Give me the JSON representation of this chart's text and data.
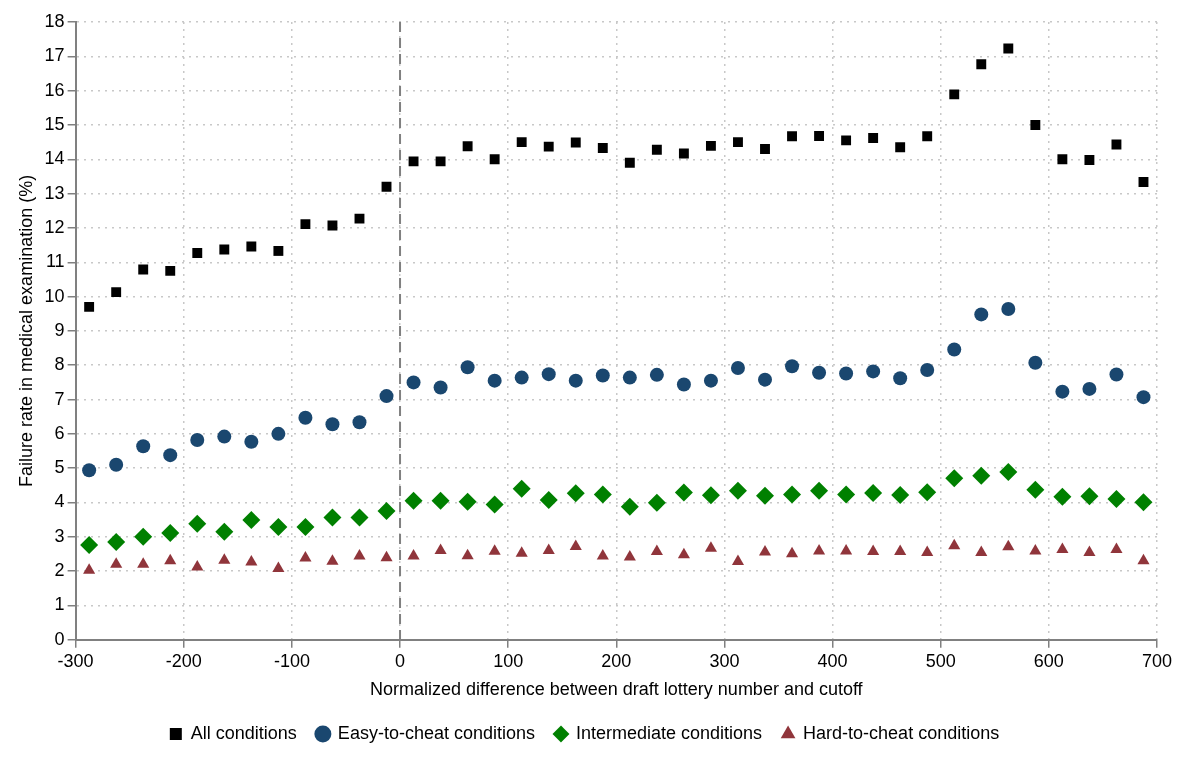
{
  "chart_data": {
    "type": "scatter",
    "xlabel": "Normalized difference between draft lottery number and cutoff",
    "ylabel": "Failure rate in medical examination (%)",
    "x": [
      -287.5,
      -262.5,
      -237.5,
      -212.5,
      -187.5,
      -162.5,
      -137.5,
      -112.5,
      -87.5,
      -62.5,
      -37.5,
      -12.5,
      12.5,
      37.5,
      62.5,
      87.5,
      112.5,
      137.5,
      162.5,
      187.5,
      212.5,
      237.5,
      262.5,
      287.5,
      312.5,
      337.5,
      362.5,
      387.5,
      412.5,
      437.5,
      462.5,
      487.5,
      512.5,
      537.5,
      562.5,
      587.5,
      612.5,
      637.5,
      662.5,
      687.5
    ],
    "series": [
      {
        "name": "All conditions",
        "color": "#000000",
        "marker": "square",
        "values": [
          9.7,
          10.13,
          10.79,
          10.75,
          11.27,
          11.37,
          11.46,
          11.33,
          12.11,
          12.07,
          12.27,
          13.2,
          13.94,
          13.94,
          14.38,
          14.0,
          14.5,
          14.37,
          14.49,
          14.33,
          13.9,
          14.28,
          14.17,
          14.39,
          14.5,
          14.3,
          14.67,
          14.68,
          14.55,
          14.62,
          14.35,
          14.67,
          15.89,
          16.77,
          17.23,
          15.0,
          14.0,
          13.98,
          14.43,
          13.34
        ]
      },
      {
        "name": "Easy-to-cheat conditions",
        "color": "#1a476f",
        "marker": "circle",
        "values": [
          4.94,
          5.1,
          5.64,
          5.38,
          5.82,
          5.92,
          5.77,
          6.0,
          6.47,
          6.28,
          6.34,
          7.1,
          7.5,
          7.35,
          7.94,
          7.55,
          7.64,
          7.74,
          7.55,
          7.7,
          7.64,
          7.72,
          7.44,
          7.55,
          7.92,
          7.58,
          7.97,
          7.78,
          7.76,
          7.82,
          7.62,
          7.86,
          8.46,
          9.48,
          9.64,
          8.07,
          7.23,
          7.31,
          7.73,
          7.07
        ]
      },
      {
        "name": "Intermediate conditions",
        "color": "#008000",
        "marker": "diamond",
        "values": [
          2.76,
          2.85,
          3.0,
          3.11,
          3.38,
          3.15,
          3.49,
          3.29,
          3.29,
          3.56,
          3.56,
          3.75,
          4.05,
          4.05,
          4.02,
          3.94,
          4.4,
          4.07,
          4.27,
          4.23,
          3.88,
          3.99,
          4.29,
          4.21,
          4.34,
          4.2,
          4.23,
          4.34,
          4.23,
          4.28,
          4.22,
          4.3,
          4.71,
          4.78,
          4.89,
          4.37,
          4.17,
          4.18,
          4.1,
          4.01
        ]
      },
      {
        "name": "Hard-to-cheat conditions",
        "color": "#90353b",
        "marker": "triangle",
        "values": [
          2.03,
          2.2,
          2.2,
          2.3,
          2.12,
          2.32,
          2.27,
          2.08,
          2.38,
          2.29,
          2.44,
          2.39,
          2.44,
          2.6,
          2.45,
          2.58,
          2.52,
          2.6,
          2.72,
          2.44,
          2.41,
          2.57,
          2.48,
          2.67,
          2.28,
          2.56,
          2.51,
          2.59,
          2.59,
          2.57,
          2.57,
          2.54,
          2.74,
          2.54,
          2.71,
          2.59,
          2.63,
          2.54,
          2.63,
          2.3
        ]
      }
    ],
    "xlim": [
      -300,
      700
    ],
    "xticks": [
      -300,
      -200,
      -100,
      0,
      100,
      200,
      300,
      400,
      500,
      600,
      700
    ],
    "ylim": [
      0,
      18
    ],
    "yticks": [
      0,
      1,
      2,
      3,
      4,
      5,
      6,
      7,
      8,
      9,
      10,
      11,
      12,
      13,
      14,
      15,
      16,
      17,
      18
    ],
    "ref_lines": [
      {
        "axis": "x",
        "value": 0,
        "color": "#808080",
        "line_style": "dashed"
      }
    ],
    "grid": true,
    "legend": "bottom"
  }
}
